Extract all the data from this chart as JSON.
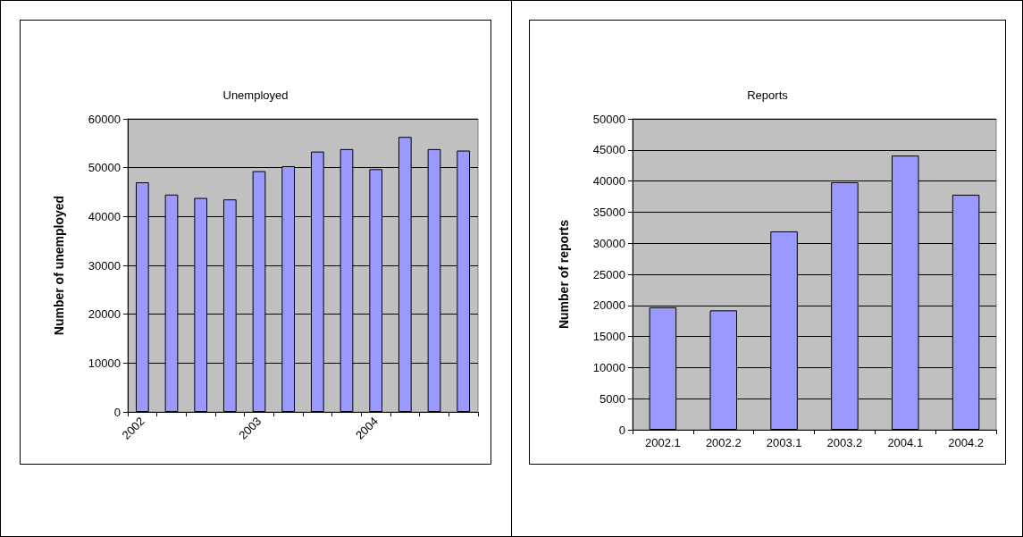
{
  "chart_data": [
    {
      "type": "bar",
      "title": "Unemployed",
      "ylabel": "Number of unemployed",
      "categories": [
        "2002",
        null,
        null,
        null,
        "2003",
        null,
        null,
        null,
        "2004",
        null,
        null,
        null
      ],
      "values": [
        47000,
        44500,
        43800,
        43500,
        49300,
        50300,
        53300,
        53800,
        49700,
        56300,
        53800,
        53500
      ],
      "color": "#9999ff",
      "ylim": [
        0,
        60000
      ],
      "yticks": [
        0,
        10000,
        20000,
        30000,
        40000,
        50000,
        60000
      ],
      "grid": "y"
    },
    {
      "type": "bar",
      "title": "Reports",
      "ylabel": "Number of reports",
      "categories": [
        "2002.1",
        "2002.2",
        "2003.1",
        "2003.2",
        "2004.1",
        "2004.2"
      ],
      "values": [
        19700,
        19200,
        31900,
        39800,
        44100,
        37800
      ],
      "color": "#9999ff",
      "ylim": [
        0,
        50000
      ],
      "yticks": [
        0,
        5000,
        10000,
        15000,
        20000,
        25000,
        30000,
        35000,
        40000,
        45000,
        50000
      ],
      "grid": "y"
    }
  ]
}
